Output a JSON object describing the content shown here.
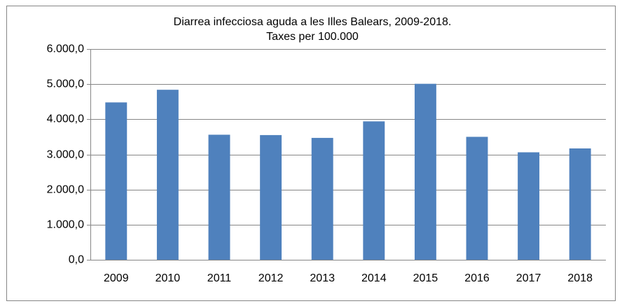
{
  "chart_data": {
    "type": "bar",
    "title": [
      "Diarrea infecciosa aguda a les Illes Balears, 2009-2018.",
      "Taxes per 100.000"
    ],
    "categories": [
      "2009",
      "2010",
      "2011",
      "2012",
      "2013",
      "2014",
      "2015",
      "2016",
      "2017",
      "2018"
    ],
    "values": [
      4480,
      4840,
      3560,
      3550,
      3470,
      3940,
      5010,
      3500,
      3060,
      3170
    ],
    "color": "#4f81bd",
    "ylim": [
      0,
      6000
    ],
    "yticks": [
      {
        "value": 0,
        "label": "0,0"
      },
      {
        "value": 1000,
        "label": "1.000,0"
      },
      {
        "value": 2000,
        "label": "2.000,0"
      },
      {
        "value": 3000,
        "label": "3.000,0"
      },
      {
        "value": 4000,
        "label": "4.000,0"
      },
      {
        "value": 5000,
        "label": "5.000,0"
      },
      {
        "value": 6000,
        "label": "6.000,0"
      }
    ],
    "grid": true
  }
}
